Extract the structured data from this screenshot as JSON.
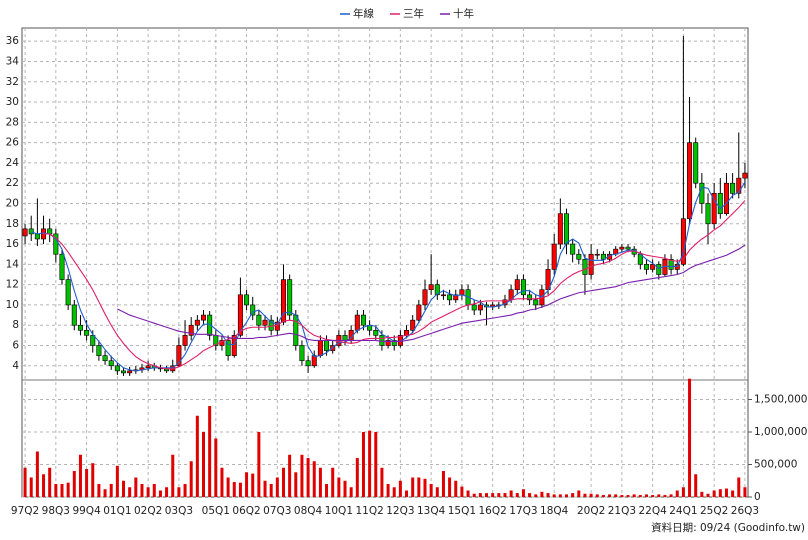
{
  "chart_data": {
    "type": "candlestick",
    "legend": "top",
    "grid": true,
    "up_color": "#ff0000",
    "down_color": "#00c000",
    "footer": "資料日期: 09/24 (Goodinfo.tw)",
    "categories": [
      "97Q2",
      null,
      null,
      null,
      null,
      "98Q3",
      null,
      null,
      null,
      null,
      "99Q4",
      null,
      null,
      null,
      null,
      "01Q1",
      null,
      null,
      null,
      null,
      "02Q2",
      null,
      null,
      null,
      null,
      "03Q3",
      null,
      null,
      null,
      null,
      null,
      "05Q1",
      null,
      null,
      null,
      null,
      "06Q2",
      null,
      null,
      null,
      null,
      "07Q3",
      null,
      null,
      null,
      null,
      "08Q4",
      null,
      null,
      null,
      null,
      "10Q1",
      null,
      null,
      null,
      null,
      "11Q2",
      null,
      null,
      null,
      null,
      "12Q3",
      null,
      null,
      null,
      null,
      "13Q4",
      null,
      null,
      null,
      null,
      "15Q1",
      null,
      null,
      null,
      null,
      "16Q2",
      null,
      null,
      null,
      null,
      "17Q3",
      null,
      null,
      null,
      null,
      "18Q4",
      null,
      null,
      null,
      null,
      null,
      "20Q2",
      null,
      null,
      null,
      null,
      "21Q3",
      null,
      null,
      null,
      null,
      "22Q4",
      null,
      null,
      null,
      null,
      "24Q1",
      null,
      null,
      null,
      null,
      "25Q2",
      null,
      null,
      null,
      null,
      "26Q3"
    ],
    "open": [
      16.8,
      17.5,
      17,
      16.5,
      17.5,
      17,
      15,
      12.5,
      10,
      8,
      7.5,
      7,
      6,
      5,
      4.5,
      4,
      3.5,
      3.3,
      3.5,
      3.6,
      3.8,
      4,
      3.8,
      3.7,
      3.5,
      4,
      6,
      7,
      8,
      8.5,
      9,
      7,
      6,
      6.5,
      5,
      7,
      11,
      10,
      9,
      8,
      8.5,
      7.5,
      8.3,
      12.5,
      9,
      6,
      4.5,
      4,
      5,
      6.5,
      5.5,
      6,
      7,
      6.5,
      7.5,
      9,
      8,
      7.5,
      7,
      6,
      6.5,
      6,
      7,
      7.5,
      8.5,
      10,
      11.5,
      12,
      11,
      11,
      10.5,
      11,
      11.5,
      10,
      9.5,
      10,
      9.8,
      10,
      10,
      10.5,
      11.5,
      12.5,
      11,
      10.5,
      10,
      11.5,
      13.5,
      16,
      19,
      16,
      15,
      14.5,
      13,
      15,
      15,
      14.5,
      15,
      15.5,
      15.7,
      15.5,
      15,
      14,
      13.5,
      14,
      13,
      14.5,
      13.5,
      14,
      18.5,
      26,
      22,
      20,
      18,
      21,
      19,
      22,
      21,
      22.5
    ],
    "high": [
      18,
      18.8,
      20.5,
      18.8,
      18.5,
      17.5,
      15.5,
      13,
      10.5,
      9,
      8.5,
      7.5,
      6.5,
      5.5,
      5,
      4.3,
      3.8,
      3.9,
      4,
      4.2,
      4.5,
      4.3,
      4.1,
      4,
      4.6,
      6.8,
      8.5,
      8.8,
      9,
      9.5,
      9.4,
      7.5,
      7,
      7,
      7.5,
      12.7,
      11.5,
      10.8,
      9.5,
      9,
      9,
      8.8,
      14,
      13,
      9.5,
      6.5,
      5,
      5.5,
      7,
      7,
      6.5,
      7.5,
      7.5,
      8,
      9.5,
      9.5,
      8.5,
      8,
      7.5,
      7,
      7,
      7.5,
      8,
      9,
      10.5,
      12.5,
      15,
      12.5,
      11.5,
      11.5,
      11.5,
      12,
      12,
      10.5,
      10.5,
      10.3,
      10.3,
      10.3,
      11,
      12,
      13,
      13,
      11.5,
      11,
      12,
      14.5,
      17,
      20.5,
      19.5,
      16.5,
      15.5,
      15,
      16,
      15.5,
      15.3,
      15.3,
      15.8,
      16,
      16,
      15.8,
      15.3,
      14.5,
      14.5,
      14.3,
      15,
      15,
      14.5,
      36.5,
      30.5,
      26.5,
      23,
      21,
      22,
      22.5,
      23,
      23,
      27,
      24
    ],
    "low": [
      16,
      16.3,
      15.8,
      16,
      16.2,
      14.2,
      12,
      9.5,
      7.5,
      7,
      6.5,
      5.3,
      4.5,
      4.1,
      3.6,
      3.1,
      3,
      3,
      3.2,
      3.3,
      3.5,
      3.5,
      3.4,
      3.3,
      3.3,
      3.9,
      5.5,
      6.5,
      7.5,
      8,
      6.5,
      5.5,
      5.5,
      4.5,
      4.8,
      6.8,
      9.5,
      8.5,
      7.5,
      7.5,
      7,
      7,
      8,
      8.5,
      5.5,
      4,
      3.3,
      3.8,
      4.8,
      5,
      5.2,
      5.8,
      6,
      6.2,
      7.2,
      7.5,
      7,
      6.5,
      5.5,
      5.7,
      5.5,
      5.8,
      6.7,
      7.2,
      8.2,
      9.5,
      11,
      10.5,
      10.5,
      10,
      10.2,
      10.5,
      9.5,
      9,
      9,
      8,
      9.5,
      9.6,
      9.7,
      10.2,
      11,
      10.5,
      10,
      9.5,
      9.7,
      11,
      13,
      15.5,
      15,
      14.2,
      14,
      11,
      12.5,
      14.5,
      14,
      14.2,
      14.8,
      15.2,
      15.2,
      14.7,
      13.5,
      13,
      13.2,
      12.5,
      12.8,
      13,
      13,
      13.8,
      18,
      21.5,
      19,
      16,
      17.5,
      18.5,
      18.8,
      20.5,
      20.5,
      21.5
    ],
    "close": [
      17.5,
      17,
      16.5,
      17.5,
      17,
      15,
      12.5,
      10,
      8,
      7.5,
      7,
      6,
      5,
      4.5,
      4,
      3.5,
      3.3,
      3.5,
      3.6,
      3.8,
      4,
      3.8,
      3.7,
      3.5,
      4,
      6,
      7,
      8,
      8.5,
      9,
      7,
      6,
      6.5,
      5,
      7,
      11,
      10,
      9,
      8,
      8.5,
      7.5,
      8.3,
      12.5,
      9,
      6,
      4.5,
      4,
      5,
      6.5,
      5.5,
      6,
      7,
      6.5,
      7.5,
      9,
      8,
      7.5,
      7,
      6,
      6.5,
      6,
      7,
      7.5,
      8.5,
      10,
      11.5,
      12,
      11,
      11,
      10.5,
      11,
      11.5,
      10,
      9.5,
      10,
      9.8,
      10,
      10,
      10.5,
      11.5,
      12.5,
      11,
      10.5,
      10,
      11.5,
      13.5,
      16,
      19,
      16,
      15,
      14.5,
      13,
      15,
      15,
      14.5,
      15,
      15.5,
      15.7,
      15.5,
      15,
      14,
      13.5,
      14,
      13,
      14.5,
      13.5,
      14,
      18.5,
      26,
      22,
      20,
      18,
      21,
      19,
      22,
      21,
      22.5,
      23
    ],
    "volume": {
      "color": "#e00000",
      "values": [
        450000,
        300000,
        700000,
        350000,
        450000,
        200000,
        200000,
        220000,
        400000,
        650000,
        430000,
        520000,
        200000,
        120000,
        200000,
        480000,
        250000,
        150000,
        300000,
        200000,
        150000,
        200000,
        100000,
        150000,
        650000,
        150000,
        200000,
        550000,
        1250000,
        1000000,
        1400000,
        900000,
        450000,
        300000,
        230000,
        220000,
        380000,
        360000,
        1000000,
        250000,
        200000,
        300000,
        450000,
        650000,
        380000,
        650000,
        600000,
        550000,
        450000,
        200000,
        450000,
        300000,
        250000,
        150000,
        600000,
        1000000,
        1020000,
        1000000,
        450000,
        200000,
        150000,
        250000,
        100000,
        300000,
        300000,
        280000,
        200000,
        150000,
        400000,
        300000,
        250000,
        160000,
        100000,
        50000,
        60000,
        60000,
        60000,
        60000,
        60000,
        100000,
        60000,
        120000,
        60000,
        40000,
        80000,
        60000,
        40000,
        40000,
        40000,
        60000,
        100000,
        50000,
        50000,
        40000,
        30000,
        40000,
        40000,
        30000,
        30000,
        40000,
        30000,
        40000,
        30000,
        40000,
        30000,
        40000,
        100000,
        150000,
        1820000,
        350000,
        80000,
        50000,
        100000,
        120000,
        130000,
        100000,
        300000,
        150000
      ]
    },
    "series": [
      {
        "name": "年線",
        "color": "#1f5fd0",
        "values": [
          null,
          17.2,
          17,
          17.1,
          17,
          16.5,
          15.5,
          13.6,
          11.4,
          9.5,
          8.1,
          7.1,
          6.4,
          5.6,
          4.9,
          4.3,
          3.8,
          3.6,
          3.5,
          3.6,
          3.7,
          3.8,
          3.8,
          3.8,
          3.8,
          4.3,
          5.1,
          6.3,
          7.4,
          8.1,
          8.1,
          7.6,
          7.1,
          6.1,
          6.1,
          7.4,
          8.3,
          9.3,
          9.5,
          8.9,
          8.3,
          8.1,
          9.2,
          9.3,
          9,
          8,
          5.9,
          4.9,
          5,
          5.3,
          5.8,
          6.3,
          6.3,
          6.8,
          7.5,
          7.8,
          8,
          7.9,
          7.1,
          6.8,
          6.4,
          6.4,
          6.8,
          7.3,
          8.3,
          9.4,
          10.5,
          11.1,
          11.4,
          11.1,
          10.9,
          11,
          10.8,
          10.5,
          10.3,
          9.8,
          9.8,
          9.9,
          10.1,
          10.5,
          11.1,
          11.4,
          11.4,
          11,
          10.8,
          11.4,
          12.8,
          15,
          16.1,
          16.5,
          16.1,
          14.6,
          14.4,
          14.4,
          14.4,
          14.9,
          15,
          15.2,
          15.4,
          15.4,
          15,
          14.5,
          14.1,
          13.6,
          13.8,
          13.8,
          13.8,
          15.1,
          18,
          20.1,
          21.6,
          21.5,
          20.3,
          19.5,
          20,
          20.8,
          21.1,
          22.1
        ]
      },
      {
        "name": "三年",
        "color": "#e0206a",
        "values": [
          null,
          null,
          null,
          17,
          17,
          16.6,
          16,
          15.2,
          14.3,
          13.4,
          12.5,
          11.5,
          10.3,
          9.1,
          8,
          7,
          6.2,
          5.5,
          4.9,
          4.5,
          4.2,
          4,
          3.8,
          3.7,
          3.7,
          3.9,
          4.2,
          4.6,
          5,
          5.5,
          5.8,
          6.1,
          6.4,
          6.6,
          6.8,
          7.4,
          7.7,
          7.8,
          7.8,
          7.8,
          7.9,
          8,
          8.4,
          8.5,
          8.4,
          8,
          7.4,
          7,
          6.8,
          6.6,
          6.5,
          6.4,
          6.3,
          6.2,
          6.3,
          6.6,
          6.7,
          6.7,
          6.7,
          6.8,
          6.8,
          6.9,
          7,
          7.1,
          7.4,
          7.8,
          8.3,
          8.6,
          8.9,
          9.2,
          9.5,
          9.8,
          10,
          10.1,
          10.3,
          10.4,
          10.4,
          10.4,
          10.4,
          10.5,
          10.6,
          10.6,
          10.6,
          10.6,
          10.7,
          10.9,
          11.4,
          12.1,
          12.6,
          13,
          13.3,
          13.5,
          13.8,
          14,
          14.1,
          14.3,
          14.6,
          15,
          15.3,
          15.3,
          15.1,
          14.9,
          14.8,
          14.7,
          14.6,
          14.4,
          14.3,
          14.5,
          15.4,
          16,
          16.5,
          16.9,
          17.4,
          17.8,
          18.4,
          19,
          19.6,
          20.3
        ]
      },
      {
        "name": "十年",
        "color": "#7a1fb0",
        "values": [
          null,
          null,
          null,
          null,
          null,
          null,
          null,
          null,
          null,
          null,
          null,
          null,
          null,
          null,
          null,
          9.6,
          9.3,
          9,
          8.8,
          8.6,
          8.4,
          8.2,
          8,
          7.8,
          7.6,
          7.4,
          7.3,
          7.2,
          7.1,
          7.1,
          7.1,
          7,
          6.9,
          6.8,
          6.7,
          6.7,
          6.7,
          6.7,
          6.8,
          6.8,
          6.9,
          7,
          7.1,
          7.2,
          7.1,
          6.9,
          6.6,
          6.5,
          6.5,
          6.5,
          6.5,
          6.5,
          6.5,
          6.5,
          6.5,
          6.5,
          6.5,
          6.5,
          6.4,
          6.4,
          6.4,
          6.4,
          6.5,
          6.6,
          6.8,
          7,
          7.2,
          7.4,
          7.6,
          7.8,
          8,
          8.2,
          8.3,
          8.4,
          8.5,
          8.6,
          8.7,
          8.8,
          8.9,
          9,
          9.2,
          9.3,
          9.5,
          9.6,
          9.8,
          10,
          10.3,
          10.6,
          10.8,
          11,
          11.2,
          11.3,
          11.4,
          11.5,
          11.6,
          11.7,
          11.8,
          12,
          12.2,
          12.3,
          12.4,
          12.5,
          12.6,
          12.7,
          12.8,
          12.9,
          13,
          13.2,
          13.6,
          13.9,
          14.1,
          14.3,
          14.5,
          14.7,
          14.9,
          15.2,
          15.5,
          15.9
        ]
      }
    ],
    "ylim": [
      2.6,
      37.3
    ],
    "yticks": [
      4,
      6,
      8,
      10,
      12,
      14,
      16,
      18,
      20,
      22,
      24,
      26,
      28,
      30,
      32,
      34,
      36
    ],
    "y2lim": [
      0,
      1800000
    ],
    "y2ticks": [
      0,
      {
        "value": 500000,
        "label": "500,000"
      },
      {
        "value": 1000000,
        "label": "1,000,000"
      },
      {
        "value": 1500000,
        "label": "1,500,000"
      }
    ]
  }
}
